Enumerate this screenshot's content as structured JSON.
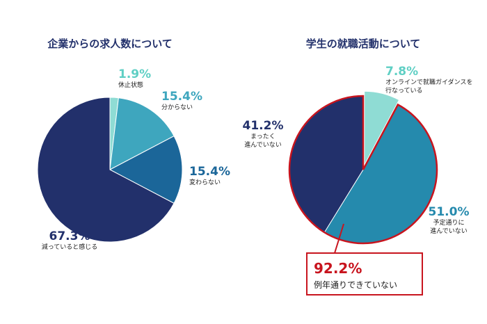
{
  "chart_data": [
    {
      "type": "pie",
      "title": "企業からの求人数について",
      "slices": [
        {
          "label": "休止状態",
          "value": 1.9,
          "value_label": "1.9%",
          "color": "#8fdcd4"
        },
        {
          "label": "分からない",
          "value": 15.4,
          "value_label": "15.4%",
          "color": "#3ea6be"
        },
        {
          "label": "変わらない",
          "value": 15.4,
          "value_label": "15.4%",
          "color": "#1b6699"
        },
        {
          "label": "減っていると感じる",
          "value": 67.3,
          "value_label": "67.3%",
          "color": "#22306b"
        }
      ]
    },
    {
      "type": "pie",
      "title": "学生の就職活動について",
      "slices": [
        {
          "label": "オンラインで就職ガイダンスを\n行なっている",
          "value": 7.8,
          "value_label": "7.8%",
          "color": "#8fdcd4"
        },
        {
          "label": "予定通りに\n進んでいない",
          "value": 51.0,
          "value_label": "51.0%",
          "color": "#258aad"
        },
        {
          "label": "まったく\n進んでいない",
          "value": 41.2,
          "value_label": "41.2%",
          "color": "#22306b"
        }
      ],
      "callout": {
        "value_label": "92.2%",
        "label": "例年通りできていない",
        "color": "#c8141e"
      }
    }
  ]
}
